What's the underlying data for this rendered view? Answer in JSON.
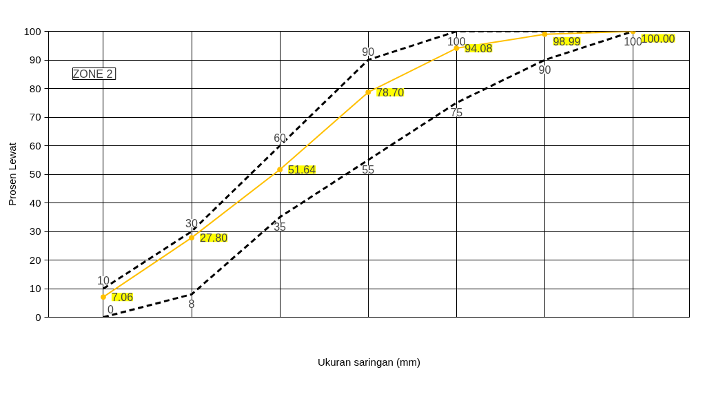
{
  "chart_data": {
    "type": "line",
    "xlabel": "Ukuran saringan (mm)",
    "ylabel": "Prosen Lewat",
    "annotations": [
      "ZONE  2"
    ],
    "categories": [
      null,
      null,
      null,
      null,
      null,
      null,
      null
    ],
    "ylim": [
      0,
      100
    ],
    "yticks": [
      0,
      10,
      20,
      30,
      40,
      50,
      60,
      70,
      80,
      90,
      100
    ],
    "tick_labels": "y",
    "grid": true,
    "series": [
      {
        "color": "#000000",
        "line_style": "dashed",
        "marker": "none",
        "values": [
          10,
          30,
          60,
          90,
          100,
          100,
          100
        ],
        "value_labels": [
          "10",
          "30",
          "60",
          "90",
          "100",
          null,
          null
        ]
      },
      {
        "color": "#000000",
        "line_style": "dashed",
        "marker": "none",
        "values": [
          0,
          8,
          35,
          55,
          75,
          90,
          100
        ],
        "value_labels": [
          "0",
          "8",
          "35",
          "55",
          "75",
          "90",
          "100"
        ]
      },
      {
        "color": "#ffc000",
        "line_style": "solid",
        "marker": "circle",
        "values": [
          7.06,
          27.8,
          51.64,
          78.7,
          94.08,
          98.99,
          100
        ],
        "value_labels": [
          "7.06",
          "27.80",
          "51.64",
          "78.70",
          "94.08",
          "98.99",
          "100.00"
        ]
      }
    ]
  }
}
